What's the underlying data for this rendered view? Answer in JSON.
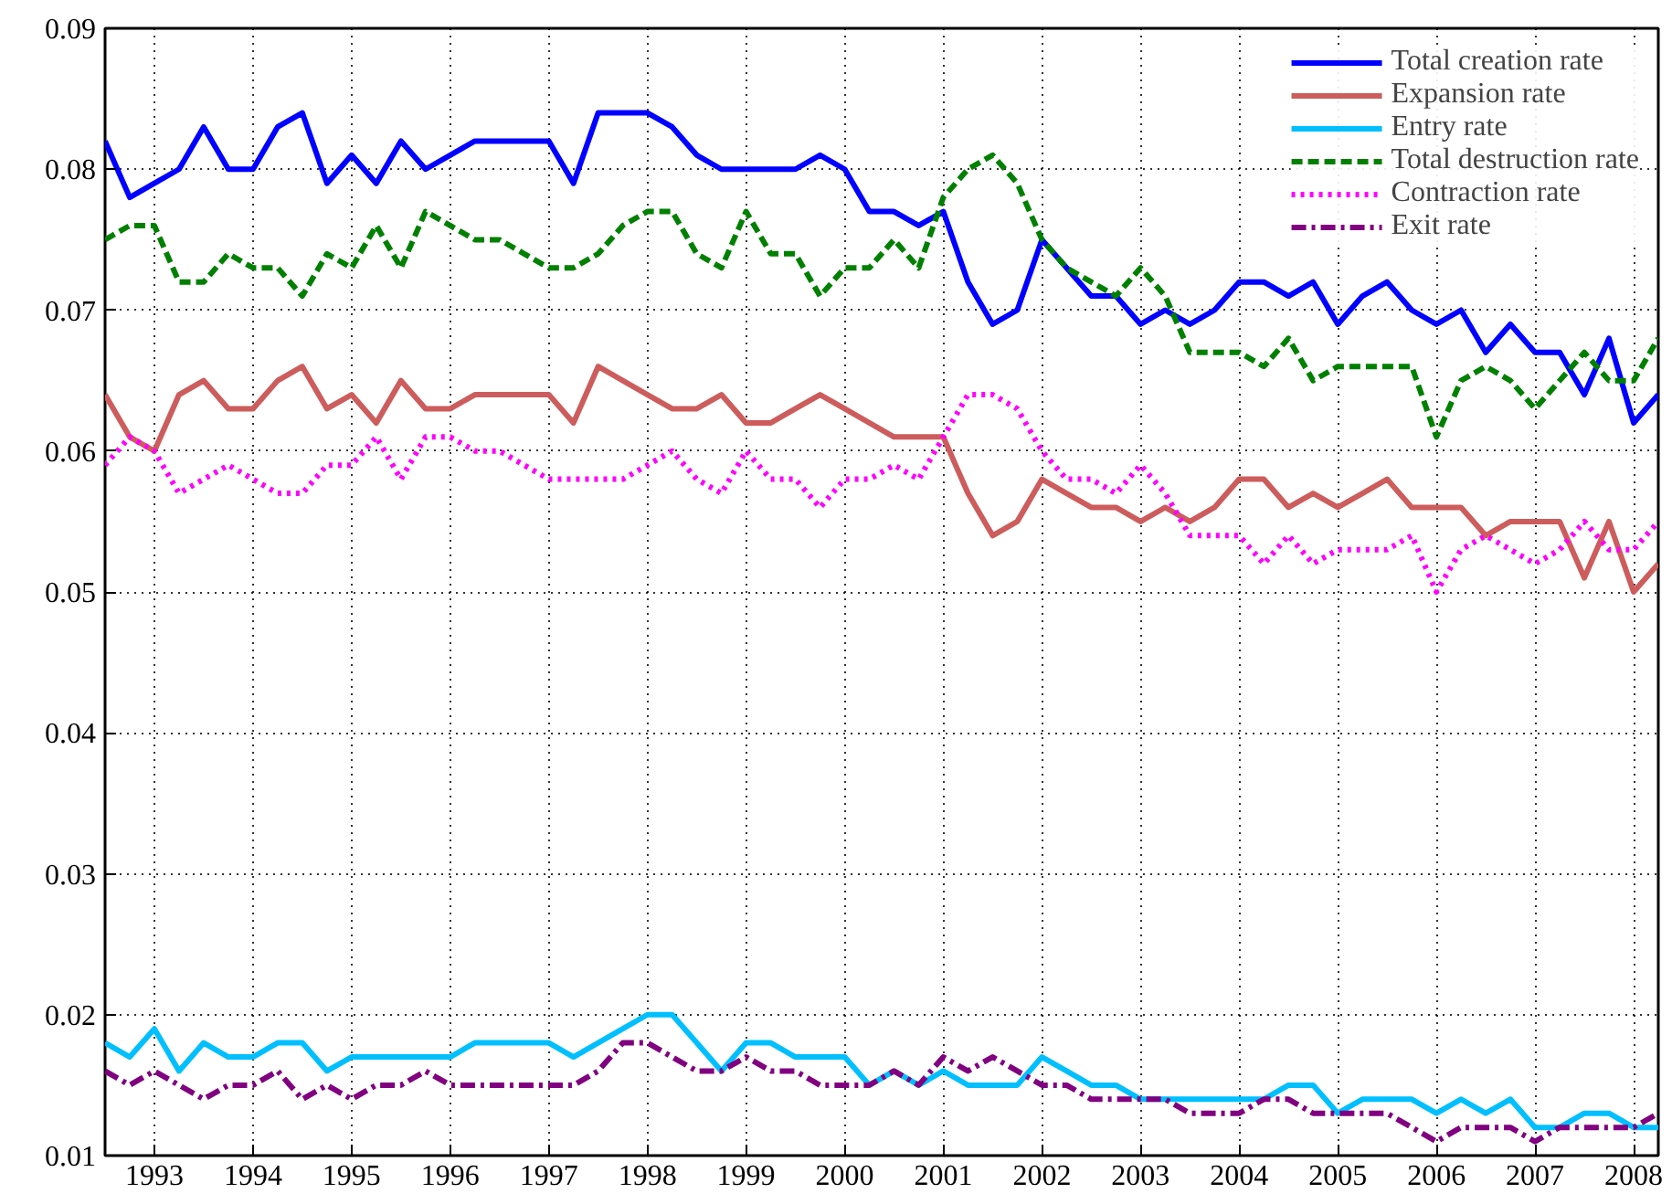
{
  "chart_data": {
    "type": "line",
    "x": [
      1992.5,
      1992.75,
      1993,
      1993.25,
      1993.5,
      1993.75,
      1994,
      1994.25,
      1994.5,
      1994.75,
      1995,
      1995.25,
      1995.5,
      1995.75,
      1996,
      1996.25,
      1996.5,
      1996.75,
      1997,
      1997.25,
      1997.5,
      1997.75,
      1998,
      1998.25,
      1998.5,
      1998.75,
      1999,
      1999.25,
      1999.5,
      1999.75,
      2000,
      2000.25,
      2000.5,
      2000.75,
      2001,
      2001.25,
      2001.5,
      2001.75,
      2002,
      2002.25,
      2002.5,
      2002.75,
      2003,
      2003.25,
      2003.5,
      2003.75,
      2004,
      2004.25,
      2004.5,
      2004.75,
      2005,
      2005.25,
      2005.5,
      2005.75,
      2006,
      2006.25,
      2006.5,
      2006.75,
      2007,
      2007.25,
      2007.5,
      2007.75,
      2008,
      2008.25
    ],
    "xlim": [
      1992.5,
      2008.25
    ],
    "xticks": [
      1993,
      1994,
      1995,
      1996,
      1997,
      1998,
      1999,
      2000,
      2001,
      2002,
      2003,
      2004,
      2005,
      2006,
      2007,
      2008
    ],
    "ylim": [
      0.01,
      0.09
    ],
    "yticks": [
      0.01,
      0.02,
      0.03,
      0.04,
      0.05,
      0.06,
      0.07,
      0.08,
      0.09
    ],
    "grid": true,
    "legend": "top right",
    "series": [
      {
        "name": "Total creation rate",
        "color": "#0000ff",
        "line_style": "solid",
        "values": [
          0.082,
          0.078,
          0.079,
          0.08,
          0.083,
          0.08,
          0.08,
          0.083,
          0.084,
          0.079,
          0.081,
          0.079,
          0.082,
          0.08,
          0.081,
          0.082,
          0.082,
          0.082,
          0.082,
          0.079,
          0.084,
          0.084,
          0.084,
          0.083,
          0.081,
          0.08,
          0.08,
          0.08,
          0.08,
          0.081,
          0.08,
          0.077,
          0.077,
          0.076,
          0.077,
          0.072,
          0.069,
          0.07,
          0.075,
          0.073,
          0.071,
          0.071,
          0.069,
          0.07,
          0.069,
          0.07,
          0.072,
          0.072,
          0.071,
          0.072,
          0.069,
          0.071,
          0.072,
          0.07,
          0.069,
          0.07,
          0.067,
          0.069,
          0.067,
          0.067,
          0.064,
          0.068,
          0.062,
          0.064
        ]
      },
      {
        "name": "Expansion rate",
        "color": "#cd5c5c",
        "line_style": "solid",
        "values": [
          0.064,
          0.061,
          0.06,
          0.064,
          0.065,
          0.063,
          0.063,
          0.065,
          0.066,
          0.063,
          0.064,
          0.062,
          0.065,
          0.063,
          0.063,
          0.064,
          0.064,
          0.064,
          0.064,
          0.062,
          0.066,
          0.065,
          0.064,
          0.063,
          0.063,
          0.064,
          0.062,
          0.062,
          0.063,
          0.064,
          0.063,
          0.062,
          0.061,
          0.061,
          0.061,
          0.057,
          0.054,
          0.055,
          0.058,
          0.057,
          0.056,
          0.056,
          0.055,
          0.056,
          0.055,
          0.056,
          0.058,
          0.058,
          0.056,
          0.057,
          0.056,
          0.057,
          0.058,
          0.056,
          0.056,
          0.056,
          0.054,
          0.055,
          0.055,
          0.055,
          0.051,
          0.055,
          0.05,
          0.052
        ]
      },
      {
        "name": "Entry rate",
        "color": "#00bfff",
        "line_style": "solid",
        "values": [
          0.018,
          0.017,
          0.019,
          0.016,
          0.018,
          0.017,
          0.017,
          0.018,
          0.018,
          0.016,
          0.017,
          0.017,
          0.017,
          0.017,
          0.017,
          0.018,
          0.018,
          0.018,
          0.018,
          0.017,
          0.018,
          0.019,
          0.02,
          0.02,
          0.018,
          0.016,
          0.018,
          0.018,
          0.017,
          0.017,
          0.017,
          0.015,
          0.016,
          0.015,
          0.016,
          0.015,
          0.015,
          0.015,
          0.017,
          0.016,
          0.015,
          0.015,
          0.014,
          0.014,
          0.014,
          0.014,
          0.014,
          0.014,
          0.015,
          0.015,
          0.013,
          0.014,
          0.014,
          0.014,
          0.013,
          0.014,
          0.013,
          0.014,
          0.012,
          0.012,
          0.013,
          0.013,
          0.012,
          0.012
        ]
      },
      {
        "name": "Total destruction rate",
        "color": "#008000",
        "line_style": "dashed",
        "values": [
          0.075,
          0.076,
          0.076,
          0.072,
          0.072,
          0.074,
          0.073,
          0.073,
          0.071,
          0.074,
          0.073,
          0.076,
          0.073,
          0.077,
          0.076,
          0.075,
          0.075,
          0.074,
          0.073,
          0.073,
          0.074,
          0.076,
          0.077,
          0.077,
          0.074,
          0.073,
          0.077,
          0.074,
          0.074,
          0.071,
          0.073,
          0.073,
          0.075,
          0.073,
          0.078,
          0.08,
          0.081,
          0.079,
          0.075,
          0.073,
          0.072,
          0.071,
          0.073,
          0.071,
          0.067,
          0.067,
          0.067,
          0.066,
          0.068,
          0.065,
          0.066,
          0.066,
          0.066,
          0.066,
          0.061,
          0.065,
          0.066,
          0.065,
          0.063,
          0.065,
          0.067,
          0.065,
          0.065,
          0.068
        ]
      },
      {
        "name": "Contraction rate",
        "color": "#ff00ff",
        "line_style": "dotted",
        "values": [
          0.059,
          0.061,
          0.06,
          0.057,
          0.058,
          0.059,
          0.058,
          0.057,
          0.057,
          0.059,
          0.059,
          0.061,
          0.058,
          0.061,
          0.061,
          0.06,
          0.06,
          0.059,
          0.058,
          0.058,
          0.058,
          0.058,
          0.059,
          0.06,
          0.058,
          0.057,
          0.06,
          0.058,
          0.058,
          0.056,
          0.058,
          0.058,
          0.059,
          0.058,
          0.061,
          0.064,
          0.064,
          0.063,
          0.06,
          0.058,
          0.058,
          0.057,
          0.059,
          0.057,
          0.054,
          0.054,
          0.054,
          0.052,
          0.054,
          0.052,
          0.053,
          0.053,
          0.053,
          0.054,
          0.05,
          0.053,
          0.054,
          0.053,
          0.052,
          0.053,
          0.055,
          0.053,
          0.053,
          0.055
        ]
      },
      {
        "name": "Exit rate",
        "color": "#800080",
        "line_style": "dashdot",
        "values": [
          0.016,
          0.015,
          0.016,
          0.015,
          0.014,
          0.015,
          0.015,
          0.016,
          0.014,
          0.015,
          0.014,
          0.015,
          0.015,
          0.016,
          0.015,
          0.015,
          0.015,
          0.015,
          0.015,
          0.015,
          0.016,
          0.018,
          0.018,
          0.017,
          0.016,
          0.016,
          0.017,
          0.016,
          0.016,
          0.015,
          0.015,
          0.015,
          0.016,
          0.015,
          0.017,
          0.016,
          0.017,
          0.016,
          0.015,
          0.015,
          0.014,
          0.014,
          0.014,
          0.014,
          0.013,
          0.013,
          0.013,
          0.014,
          0.014,
          0.013,
          0.013,
          0.013,
          0.013,
          0.012,
          0.011,
          0.012,
          0.012,
          0.012,
          0.011,
          0.012,
          0.012,
          0.012,
          0.012,
          0.013
        ]
      }
    ]
  }
}
